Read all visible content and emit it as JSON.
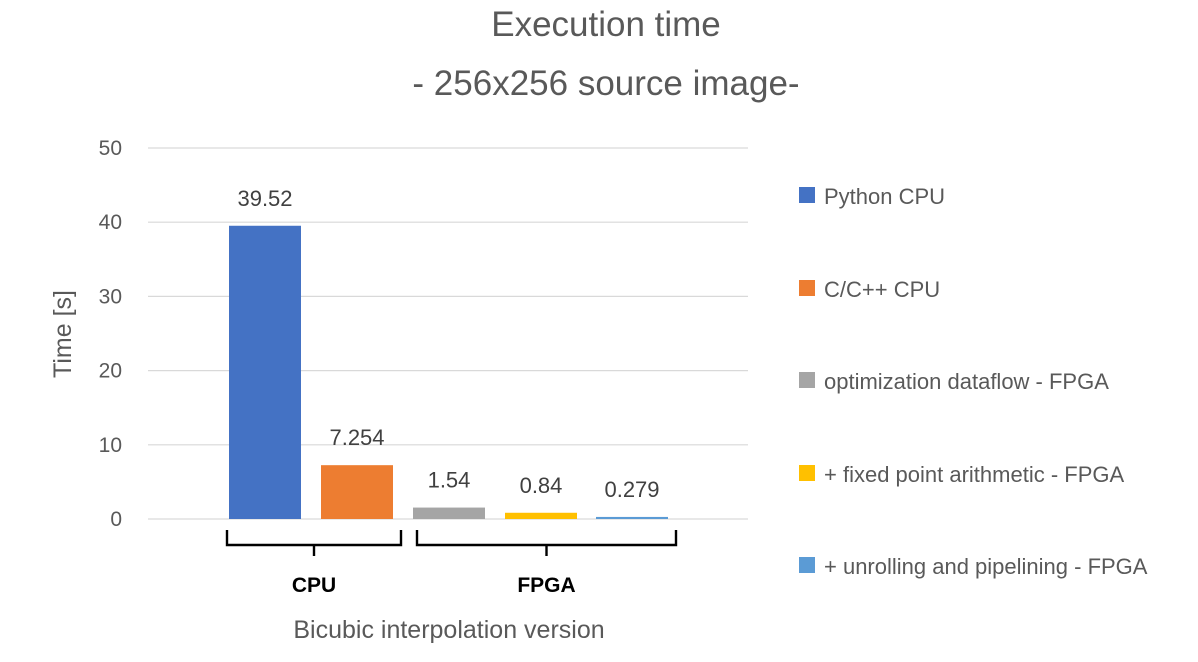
{
  "chart_data": {
    "type": "bar",
    "title": "Execution time",
    "subtitle": "- 256x256 source image-",
    "xlabel": "Bicubic interpolation version",
    "ylabel": "Time [s]",
    "ylim": [
      0,
      50
    ],
    "yticks": [
      0,
      10,
      20,
      30,
      40,
      50
    ],
    "grid": true,
    "legend_position": "right",
    "series": [
      {
        "name": "Python CPU",
        "value": 39.52,
        "label": "39.52",
        "color": "#4472C4"
      },
      {
        "name": "C/C++ CPU",
        "value": 7.254,
        "label": "7.254",
        "color": "#ED7D31"
      },
      {
        "name": "optimization dataflow - FPGA",
        "value": 1.54,
        "label": "1.54",
        "color": "#A5A5A5"
      },
      {
        "name": "+ fixed point arithmetic - FPGA",
        "value": 0.84,
        "label": "0.84",
        "color": "#FFC000"
      },
      {
        "name": "+ unrolling and pipelining - FPGA",
        "value": 0.279,
        "label": "0.279",
        "color": "#5B9BD5"
      }
    ],
    "groups": [
      {
        "label": "CPU",
        "members": [
          0,
          1
        ]
      },
      {
        "label": "FPGA",
        "members": [
          2,
          3,
          4
        ]
      }
    ]
  }
}
